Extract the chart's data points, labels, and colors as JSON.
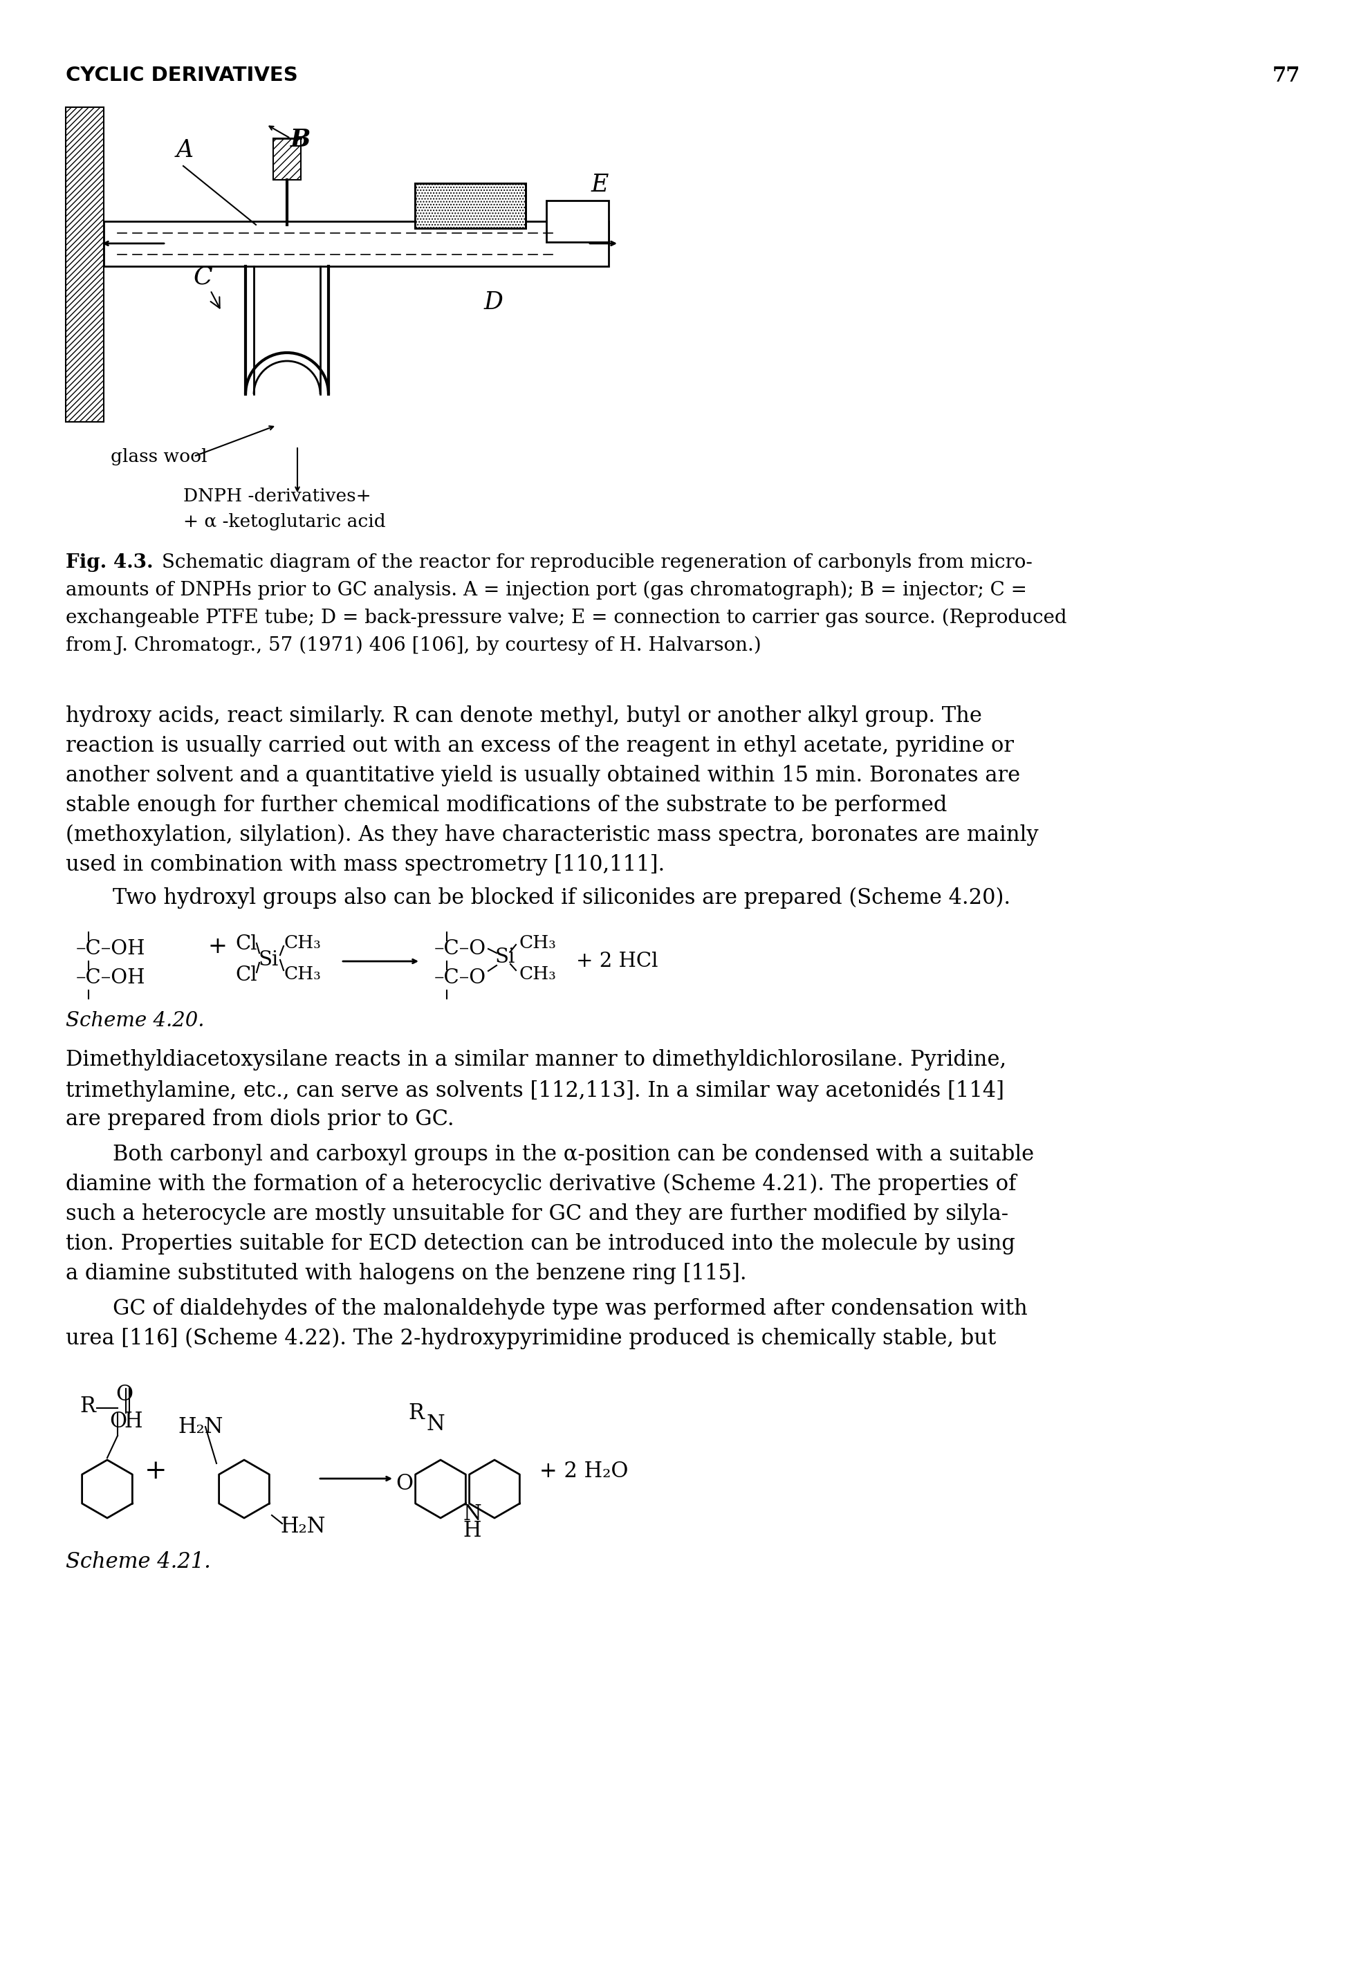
{
  "page_number": "77",
  "header_text": "CYCLIC DERIVATIVES",
  "caption_bold": "Fig. 4.3.",
  "caption_rest_1": " Schematic diagram of the reactor for reproducible regeneration of carbonyls from micro-",
  "caption_line2": "amounts of DNPHs prior to GC analysis. A = injection port (gas chromatograph); B = injector; C =",
  "caption_line3": "exchangeable PTFE tube; D = back-pressure valve; E = connection to carrier gas source. (Reproduced",
  "caption_line4": "from J. Chromatogr., 57 (1971) 406 [106], by courtesy of H. Halvarson.)",
  "body_lines_1": [
    "hydroxy acids, react similarly. R can denote methyl, butyl or another alkyl group. The",
    "reaction is usually carried out with an excess of the reagent in ethyl acetate, pyridine or",
    "another solvent and a quantitative yield is usually obtained within 15 min. Boronates are",
    "stable enough for further chemical modifications of the substrate to be performed",
    "(methoxylation, silylation). As they have characteristic mass spectra, boronates are mainly",
    "used in combination with mass spectrometry [110,111]."
  ],
  "body_indent_1": "Two hydroxyl groups also can be blocked if siliconides are prepared (Scheme 4.20).",
  "scheme_420_label": "Scheme 4.20.",
  "body_lines_2": [
    "Dimethyldiacetoxysilane reacts in a similar manner to dimethyldichlorosilane. Pyridine,",
    "trimethylamine, etc., can serve as solvents [112,113]. In a similar way acetonidés [114]",
    "are prepared from diols prior to GC."
  ],
  "body_indent_2": "Both carbonyl and carboxyl groups in the α-position can be condensed with a suitable",
  "body_lines_3": [
    "diamine with the formation of a heterocyclic derivative (Scheme 4.21). The properties of",
    "such a heterocycle are mostly unsuitable for GC and they are further modified by silyla-",
    "tion. Properties suitable for ECD detection can be introduced into the molecule by using",
    "a diamine substituted with halogens on the benzene ring [115]."
  ],
  "body_indent_3": "GC of dialdehydes of the malonaldehyde type was performed after condensation with",
  "body_lines_4": [
    "urea [116] (Scheme 4.22). The 2-hydroxypyrimidine produced is chemically stable, but"
  ],
  "scheme_421_label": "Scheme 4.21.",
  "bg_color": "#ffffff",
  "text_color": "#000000"
}
